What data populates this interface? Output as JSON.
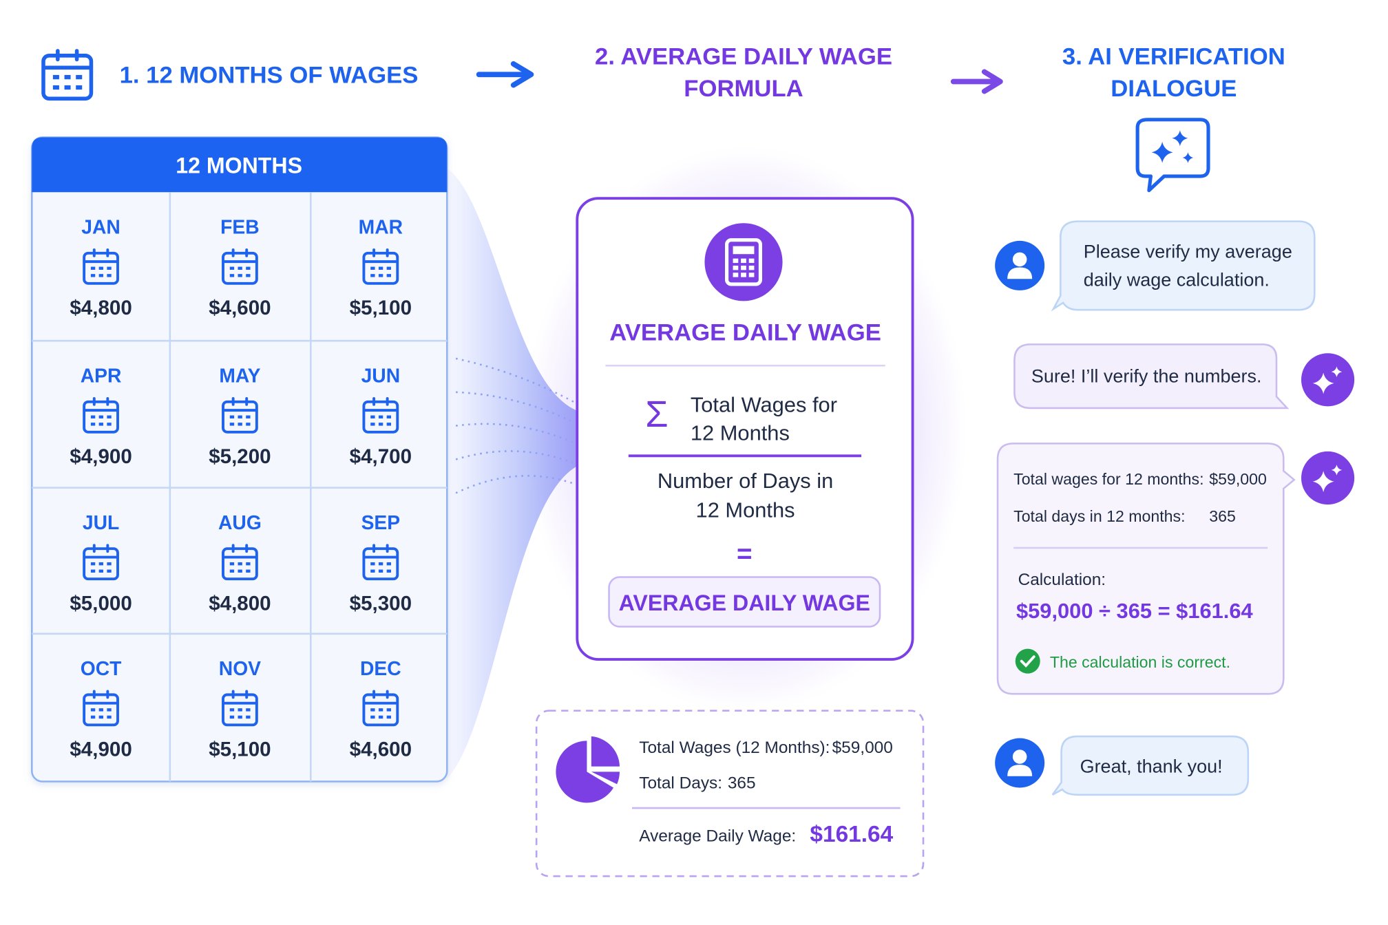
{
  "steps": [
    {
      "title_lines": [
        "1. 12 MONTHS OF WAGES"
      ]
    },
    {
      "title_lines": [
        "2. AVERAGE DAILY WAGE",
        "FORMULA"
      ]
    },
    {
      "title_lines": [
        "3. AI VERIFICATION",
        "DIALOGUE"
      ]
    }
  ],
  "months_table": {
    "header": "12 MONTHS",
    "months": [
      {
        "month": "JAN",
        "wage": "$4,800"
      },
      {
        "month": "FEB",
        "wage": "$4,600"
      },
      {
        "month": "MAR",
        "wage": "$5,100"
      },
      {
        "month": "APR",
        "wage": "$4,900"
      },
      {
        "month": "MAY",
        "wage": "$5,200"
      },
      {
        "month": "JUN",
        "wage": "$4,700"
      },
      {
        "month": "JUL",
        "wage": "$5,000"
      },
      {
        "month": "AUG",
        "wage": "$4,800"
      },
      {
        "month": "SEP",
        "wage": "$5,300"
      },
      {
        "month": "OCT",
        "wage": "$4,900"
      },
      {
        "month": "NOV",
        "wage": "$5,100"
      },
      {
        "month": "DEC",
        "wage": "$4,600"
      }
    ]
  },
  "formula": {
    "title": "AVERAGE DAILY WAGE",
    "sigma": "Σ",
    "numerator_lines": [
      "Total Wages for",
      "12 Months"
    ],
    "denominator_lines": [
      "Number of Days in",
      "12 Months"
    ],
    "equals": "=",
    "result": "AVERAGE DAILY WAGE"
  },
  "summary": {
    "rows": [
      {
        "label": "Total Wages (12 Months):",
        "value": "$59,000"
      },
      {
        "label": "Total Days:",
        "value": "365"
      }
    ],
    "result_label": "Average Daily Wage:",
    "result_value": "$161.64"
  },
  "dialogue": {
    "user_request_lines": [
      "Please verify my average",
      "daily wage calculation."
    ],
    "ai_reply": "Sure! I’ll verify the numbers.",
    "ai_details": {
      "rows": [
        {
          "label": "Total wages for 12 months:",
          "value": "$59,000"
        },
        {
          "label": "Total days in 12 months:",
          "value": "365"
        }
      ],
      "calculation_label": "Calculation:",
      "calculation": "$59,000 ÷ 365 = $161.64",
      "verdict": "The calculation is correct."
    },
    "user_thanks": "Great, thank you!"
  }
}
